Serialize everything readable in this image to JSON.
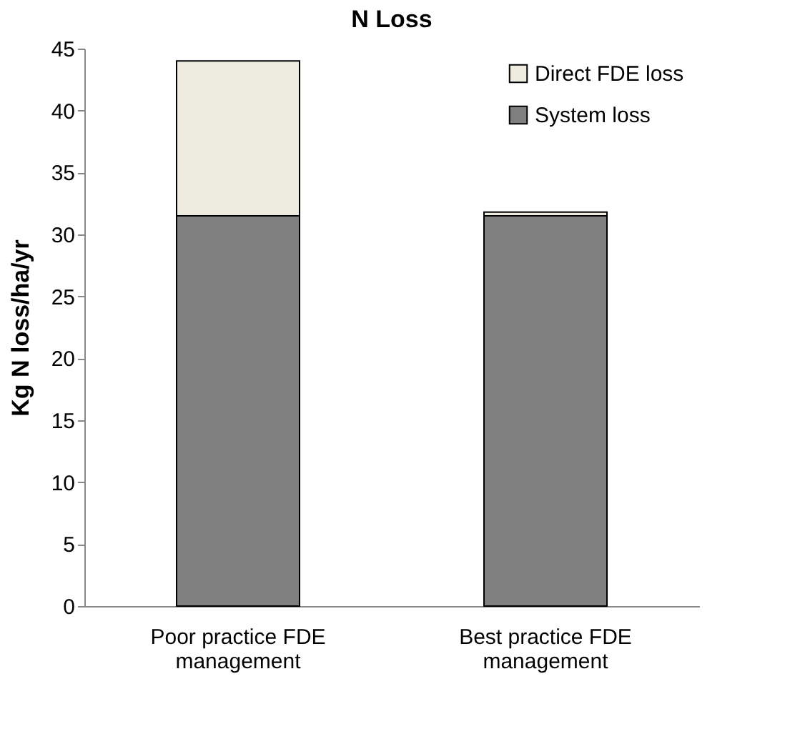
{
  "chart_data": {
    "type": "bar",
    "title": "N Loss",
    "ylabel": "Kg N loss/ha/yr",
    "categories": [
      "Poor practice FDE management",
      "Best practice FDE management"
    ],
    "series": [
      {
        "name": "System loss",
        "color": "#808080",
        "values": [
          31.5,
          31.5
        ]
      },
      {
        "name": "Direct FDE loss",
        "color": "#eeece1",
        "values": [
          12.5,
          0.3
        ]
      }
    ],
    "stacked": true,
    "ylim": [
      0,
      45
    ],
    "yticks": [
      0,
      5,
      10,
      15,
      20,
      25,
      30,
      35,
      40,
      45
    ],
    "grid": false,
    "legend": "top right"
  }
}
